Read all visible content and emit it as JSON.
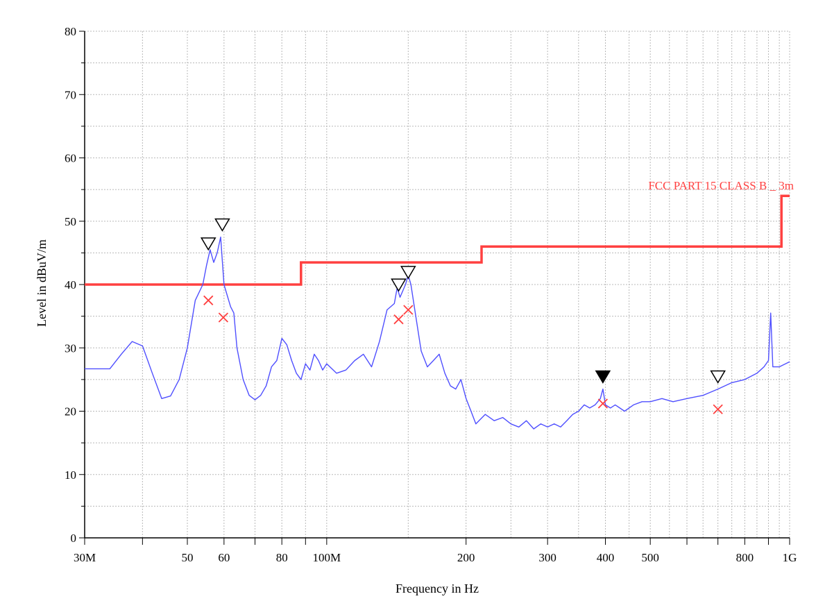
{
  "chart_data": {
    "type": "line",
    "xlabel": "Frequency in Hz",
    "ylabel": "Level in dBuV/m",
    "xscale": "log",
    "xlim": [
      30000000,
      1000000000
    ],
    "ylim": [
      0,
      80
    ],
    "grid": true,
    "x_ticks": [
      {
        "value": 30000000,
        "label": "30M"
      },
      {
        "value": 50000000,
        "label": "50"
      },
      {
        "value": 60000000,
        "label": "60"
      },
      {
        "value": 80000000,
        "label": "80"
      },
      {
        "value": 100000000,
        "label": "100M"
      },
      {
        "value": 200000000,
        "label": "200"
      },
      {
        "value": 300000000,
        "label": "300"
      },
      {
        "value": 400000000,
        "label": "400"
      },
      {
        "value": 500000000,
        "label": "500"
      },
      {
        "value": 800000000,
        "label": "800"
      },
      {
        "value": 1000000000,
        "label": "1G"
      }
    ],
    "y_ticks": [
      {
        "value": 0,
        "label": "0"
      },
      {
        "value": 10,
        "label": "10"
      },
      {
        "value": 20,
        "label": "20"
      },
      {
        "value": 30,
        "label": "30"
      },
      {
        "value": 40,
        "label": "40"
      },
      {
        "value": 50,
        "label": "50"
      },
      {
        "value": 60,
        "label": "60"
      },
      {
        "value": 70,
        "label": "70"
      },
      {
        "value": 80,
        "label": "80"
      }
    ],
    "limit": {
      "label": "FCC PART 15 CLASS B _ 3m",
      "color": "#ff4040",
      "x": [
        30000000,
        88000000,
        88000000,
        216000000,
        216000000,
        960000000,
        960000000,
        1000000000
      ],
      "y": [
        40,
        40,
        43.5,
        43.5,
        46,
        46,
        54,
        54
      ]
    },
    "series": [
      {
        "color": "#4f4fff",
        "x": [
          30,
          32,
          34,
          36,
          38,
          40,
          42,
          44,
          46,
          48,
          50,
          52,
          54,
          55,
          56,
          57,
          58,
          59,
          60,
          62,
          63,
          64,
          66,
          68,
          70,
          72,
          74,
          76,
          78,
          80,
          82,
          84,
          86,
          88,
          90,
          92,
          94,
          96,
          98,
          100,
          105,
          110,
          115,
          120,
          125,
          130,
          135,
          140,
          142,
          144,
          146,
          148,
          150,
          152,
          155,
          160,
          165,
          170,
          175,
          180,
          185,
          190,
          195,
          200,
          205,
          210,
          220,
          230,
          240,
          250,
          260,
          270,
          280,
          290,
          300,
          310,
          320,
          330,
          340,
          350,
          360,
          370,
          380,
          390,
          395,
          400,
          410,
          420,
          440,
          460,
          480,
          500,
          530,
          560,
          600,
          650,
          700,
          750,
          800,
          850,
          880,
          900,
          910,
          920,
          950,
          1000
        ],
        "y": [
          26.7,
          26.7,
          26.7,
          29,
          31,
          30.3,
          26,
          22,
          22.4,
          25,
          30,
          37.5,
          40,
          43,
          45.5,
          43.5,
          45,
          47.5,
          40,
          36.5,
          35.5,
          30,
          25,
          22.5,
          21.8,
          22.5,
          24,
          27,
          28,
          31.5,
          30.5,
          28,
          26,
          25,
          27.5,
          26.5,
          29,
          28,
          26.5,
          27.5,
          26,
          26.5,
          28,
          29,
          27,
          31,
          36,
          37,
          39.5,
          38,
          39,
          40,
          41.5,
          40,
          36,
          29.5,
          27,
          28,
          29,
          26,
          24,
          23.5,
          25,
          22,
          20,
          18,
          19.5,
          18.5,
          19,
          18,
          17.5,
          18.5,
          17.2,
          18,
          17.5,
          18,
          17.5,
          18.5,
          19.5,
          20,
          21,
          20.5,
          21,
          22,
          23.5,
          21,
          20.5,
          21,
          20,
          21,
          21.5,
          21.5,
          22,
          21.5,
          22,
          22.5,
          23.5,
          24.5,
          25,
          26,
          27,
          28,
          35.5,
          27,
          27,
          27.8
        ]
      }
    ],
    "peak_markers": [
      {
        "x": 55.5,
        "y": 45.5,
        "filled": false
      },
      {
        "x": 59.5,
        "y": 48.5,
        "filled": false
      },
      {
        "x": 143,
        "y": 39,
        "filled": false
      },
      {
        "x": 150,
        "y": 41,
        "filled": false
      },
      {
        "x": 395,
        "y": 24.5,
        "filled": true
      },
      {
        "x": 700,
        "y": 24.5,
        "filled": false
      }
    ],
    "qp_points": [
      {
        "x": 55.5,
        "y": 37.5
      },
      {
        "x": 59.8,
        "y": 34.8
      },
      {
        "x": 143,
        "y": 34.5
      },
      {
        "x": 150,
        "y": 36
      },
      {
        "x": 395,
        "y": 21.2
      },
      {
        "x": 700,
        "y": 20.3
      }
    ]
  }
}
